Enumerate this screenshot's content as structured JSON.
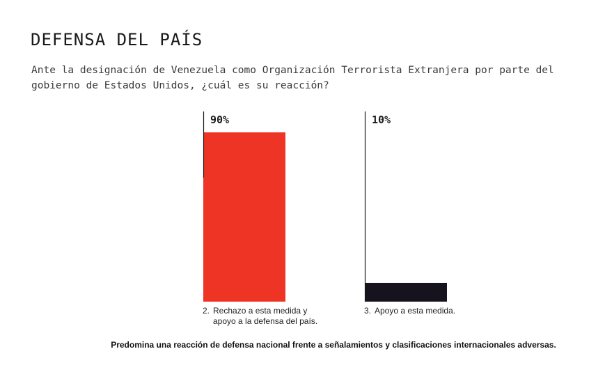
{
  "title": "DEFENSA DEL PAÍS",
  "subtitle": "Ante la designación de Venezuela como Organización Terrorista Extranjera por parte del gobierno de Estados Unidos, ¿cuál es su reacción?",
  "footnote": "Predomina una reacción de defensa nacional frente a señalamientos y clasificaciones internacionales adversas.",
  "colors": {
    "bar_1": "#ee3424",
    "bar_2": "#16121e",
    "axis": "#1a1a1a"
  },
  "chart_data": {
    "type": "bar",
    "title": "DEFENSA DEL PAÍS",
    "xlabel": "",
    "ylabel": "",
    "ylim": [
      0,
      100
    ],
    "grid": false,
    "categories": [
      {
        "number": "2.",
        "lines": [
          "Rechazo a esta medida y",
          "apoyo a la defensa del país."
        ]
      },
      {
        "number": "3.",
        "lines": [
          "Apoyo a esta medida."
        ]
      }
    ],
    "values": [
      90,
      10
    ],
    "value_labels": [
      "90%",
      "10%"
    ]
  }
}
